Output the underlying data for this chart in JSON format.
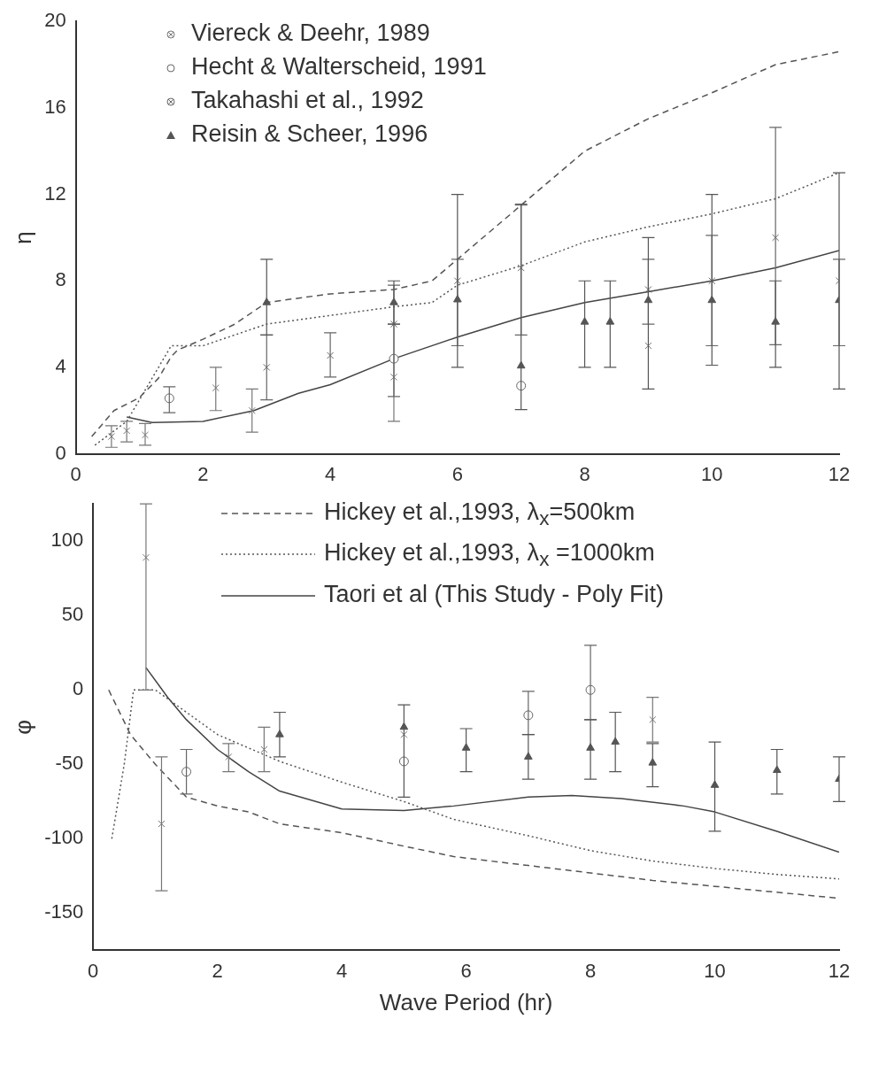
{
  "chart_data": [
    {
      "type": "scatter",
      "ylabel": "η",
      "xlim": [
        0,
        12
      ],
      "xticks": [
        0,
        2,
        4,
        6,
        8,
        10,
        12
      ],
      "ylim": [
        0,
        20
      ],
      "yticks": [
        0,
        4,
        8,
        12,
        16,
        20
      ],
      "grid": false,
      "legend": "top left",
      "series": [
        {
          "name": "Viereck & Deehr, 1989",
          "type": "scatter",
          "marker": "cross",
          "color": "#777777",
          "x": [
            0.56,
            0.8,
            1.09,
            2.2,
            2.77,
            5,
            9
          ],
          "values": [
            0.8,
            1.07,
            0.87,
            3.05,
            2.0,
            3.55,
            5.0
          ],
          "errors": [
            [
              0.3,
              1.3
            ],
            [
              0.55,
              1.5
            ],
            [
              0.4,
              1.4
            ],
            [
              2.0,
              4.0
            ],
            [
              1.0,
              3.0
            ],
            [
              1.5,
              6.0
            ],
            null
          ]
        },
        {
          "name": "Hecht & Walterscheid, 1991",
          "type": "scatter",
          "marker": "circle",
          "color": "#666666",
          "x": [
            1.47,
            5,
            7
          ],
          "values": [
            2.57,
            4.4,
            3.15
          ],
          "errors": [
            [
              1.9,
              3.1
            ],
            null,
            null
          ]
        },
        {
          "name": "Takahashi et al., 1992",
          "type": "scatter",
          "marker": "cross",
          "color": "#666666",
          "x": [
            3,
            4,
            5,
            6,
            7,
            9,
            10,
            11,
            12
          ],
          "values": [
            4.0,
            4.55,
            6.0,
            8.0,
            8.6,
            7.6,
            8.0,
            10.0,
            8.0
          ],
          "errors": [
            [
              2.5,
              5.5
            ],
            [
              3.55,
              5.6
            ],
            [
              2.65,
              7.8
            ],
            [
              5.0,
              9.0
            ],
            [
              5.5,
              11.5
            ],
            [
              6.0,
              9.0
            ],
            [
              5.0,
              10.1
            ],
            [
              5.05,
              15.1
            ],
            [
              5.0,
              9.0
            ]
          ]
        },
        {
          "name": "Reisin & Scheer, 1996",
          "type": "scatter",
          "marker": "triangle",
          "color": "#555555",
          "x": [
            3,
            5,
            6,
            7,
            8,
            8.4,
            9,
            10,
            11,
            12
          ],
          "values": [
            7.0,
            7.0,
            7.13,
            4.07,
            6.1,
            6.1,
            7.1,
            7.1,
            6.1,
            7.1
          ],
          "errors": [
            [
              5.5,
              9.0
            ],
            [
              6.0,
              8.0
            ],
            [
              4.0,
              12.0
            ],
            [
              2.05,
              11.55
            ],
            [
              4.0,
              8.0
            ],
            [
              4.0,
              8.0
            ],
            [
              3.0,
              10.0
            ],
            [
              4.1,
              12.0
            ],
            [
              4.0,
              8.0
            ],
            [
              3.0,
              13.0
            ]
          ]
        },
        {
          "type": "line",
          "marker": "none",
          "line_style": "dashed",
          "color": "#555555",
          "x": [
            0.25,
            0.6,
            1.0,
            1.3,
            1.5,
            1.6,
            2,
            2.5,
            3,
            4,
            5,
            5.6,
            6,
            7,
            8,
            9,
            10,
            11,
            12
          ],
          "values": [
            0.8,
            2.0,
            2.6,
            3.5,
            4.5,
            4.8,
            5.3,
            6,
            7,
            7.4,
            7.6,
            8,
            9,
            11.5,
            14,
            15.5,
            16.7,
            18,
            18.6
          ]
        },
        {
          "type": "line",
          "marker": "none",
          "line_style": "dotted",
          "color": "#555555",
          "x": [
            0.3,
            0.8,
            1.0,
            1.2,
            1.5,
            2,
            3,
            4,
            5,
            5.6,
            6,
            7,
            8,
            9,
            10,
            11,
            12
          ],
          "values": [
            0.4,
            1.5,
            2.5,
            3.5,
            5,
            5,
            6,
            6.4,
            6.8,
            7,
            7.8,
            8.7,
            9.8,
            10.5,
            11.1,
            11.8,
            13
          ]
        },
        {
          "type": "line",
          "marker": "none",
          "line_style": "solid",
          "color": "#444444",
          "x": [
            0.8,
            1.2,
            2,
            2.8,
            3.5,
            4,
            5,
            6,
            7,
            8,
            9,
            10,
            11,
            12
          ],
          "values": [
            1.7,
            1.45,
            1.5,
            2,
            2.8,
            3.2,
            4.4,
            5.4,
            6.3,
            7,
            7.5,
            8,
            8.6,
            9.4
          ]
        }
      ]
    },
    {
      "type": "scatter",
      "ylabel": "φ",
      "xlabel": "Wave Period (hr)",
      "xlim": [
        0,
        12
      ],
      "xticks": [
        0,
        2,
        4,
        6,
        8,
        10,
        12
      ],
      "ylim": [
        -175,
        125
      ],
      "yticks": [
        -150,
        -100,
        -50,
        0,
        50,
        100
      ],
      "grid": false,
      "legend": "top",
      "series": [
        {
          "type": "scatter",
          "marker": "cross",
          "color": "#777777",
          "x": [
            0.85,
            1.1,
            2.18,
            2.75,
            5,
            9
          ],
          "values": [
            89,
            -90,
            -45,
            -40,
            -30,
            -20
          ],
          "errors": [
            [
              0,
              125
            ],
            [
              -135,
              -45
            ],
            [
              -55,
              -36
            ],
            [
              -55,
              -25
            ],
            null,
            [
              -35,
              -5
            ]
          ]
        },
        {
          "type": "scatter",
          "marker": "circle",
          "color": "#666666",
          "x": [
            1.5,
            5,
            7,
            8
          ],
          "values": [
            -55,
            -48,
            -17,
            0
          ],
          "errors": [
            [
              -70,
              -40
            ],
            null,
            [
              -30,
              -1
            ],
            [
              -20,
              30
            ]
          ]
        },
        {
          "type": "scatter",
          "marker": "triangle",
          "color": "#555555",
          "x": [
            3,
            5,
            6,
            7,
            8,
            8.4,
            9,
            10,
            11,
            12
          ],
          "values": [
            -30,
            -25,
            -39,
            -45,
            -39,
            -35,
            -49,
            -64,
            -54,
            -60
          ],
          "errors": [
            [
              -45,
              -15
            ],
            [
              -72,
              -10
            ],
            [
              -55,
              -26
            ],
            [
              -60,
              -30
            ],
            [
              -60,
              -20
            ],
            [
              -55,
              -15
            ],
            [
              -65,
              -36
            ],
            [
              -95,
              -35
            ],
            [
              -70,
              -40
            ],
            [
              -75,
              -45
            ]
          ]
        },
        {
          "name": "Hickey et al.,1993, λ$_{x}$=500km",
          "type": "line",
          "marker": "none",
          "line_style": "dashed",
          "color": "#555555",
          "x": [
            0.25,
            0.6,
            1,
            1.5,
            2,
            2.5,
            3,
            4,
            5,
            5.8,
            7,
            8,
            9,
            10,
            11,
            12
          ],
          "values": [
            0,
            -30,
            -50,
            -72,
            -78,
            -82,
            -90,
            -96,
            -105,
            -112,
            -118,
            -123,
            -128,
            -132,
            -136,
            -140
          ]
        },
        {
          "name": "Hickey et al.,1993, λ$_{x}$ =1000km",
          "type": "line",
          "marker": "none",
          "line_style": "dotted",
          "color": "#555555",
          "x": [
            0.3,
            0.5,
            0.65,
            1,
            1.5,
            2,
            3,
            4,
            5,
            5.8,
            7,
            8,
            9,
            10,
            11,
            12
          ],
          "values": [
            -100,
            -50,
            0,
            0,
            -15,
            -30,
            -48,
            -62,
            -75,
            -87,
            -98,
            -108,
            -115,
            -120,
            -124,
            -127
          ]
        },
        {
          "name": "Taori et al (This Study - Poly Fit)",
          "type": "line",
          "marker": "none",
          "line_style": "solid",
          "color": "#444444",
          "x": [
            0.85,
            1.2,
            1.5,
            2,
            2.5,
            3,
            4,
            5,
            5.8,
            7,
            7.7,
            8.5,
            9.5,
            10,
            11,
            12
          ],
          "values": [
            15,
            -5,
            -20,
            -40,
            -55,
            -68,
            -80,
            -81,
            -78,
            -72,
            -71,
            -73,
            -78,
            -82,
            -95,
            -109
          ]
        }
      ]
    }
  ]
}
